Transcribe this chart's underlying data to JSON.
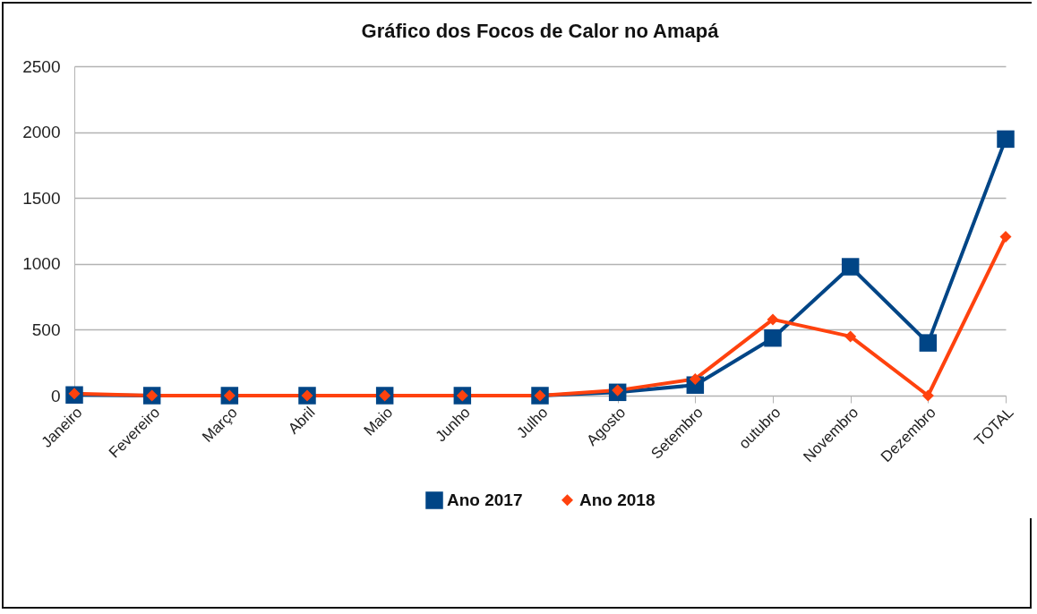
{
  "chart_data": {
    "type": "line",
    "title": "Gráfico dos Focos de Calor no Amapá",
    "categories": [
      "Janeiro",
      "Fevereiro",
      "Março",
      "Abril",
      "Maio",
      "Junho",
      "Julho",
      "Agosto",
      "Setembro",
      "outubro",
      "Novembro",
      "Dezembro",
      "TOTAL"
    ],
    "series": [
      {
        "name": "Ano 2017",
        "color": "#004586",
        "marker": "square",
        "values": [
          5,
          0,
          0,
          0,
          0,
          0,
          0,
          25,
          80,
          437,
          978,
          400,
          1947
        ]
      },
      {
        "name": "Ano 2018",
        "color": "#ff420e",
        "marker": "diamond",
        "values": [
          15,
          0,
          0,
          0,
          0,
          0,
          0,
          40,
          126,
          578,
          449,
          0,
          1206
        ]
      }
    ],
    "ylim": [
      0,
      2500
    ],
    "yticks": [
      0,
      500,
      1000,
      1500,
      2000,
      2500
    ],
    "grid": "y",
    "legend": "bottom"
  }
}
